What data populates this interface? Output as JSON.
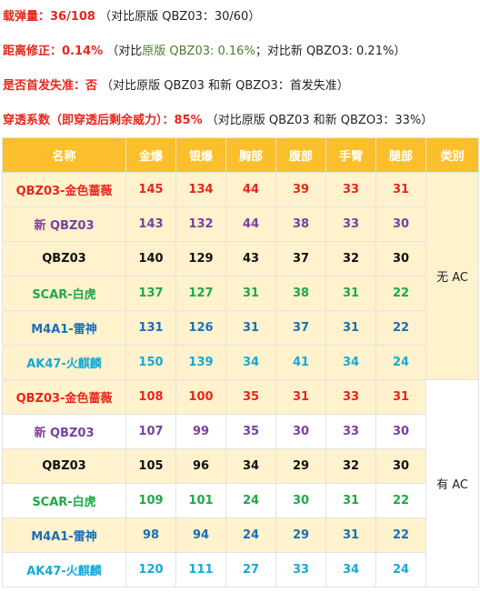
{
  "notes": {
    "line1_label": "载弹量：36/108",
    "line1_rest": "（对比原版 QBZ03：30/60）",
    "line2_label": "距离修正：0.14%",
    "line2_pre": "（对比",
    "line2_green": "原版 QBZ03: 0.16%",
    "line2_post": "；对比新 QBZO3: 0.21%）",
    "line3_label": "是否首发失准：否",
    "line3_rest": "（对比原版 QBZ03 和新 QBZO3：首发失准）",
    "line4_label": "穿透系数（即穿透后剩余威力）：85%",
    "line4_rest": "（对比原版 QBZ03 和新 QBZO3：33%）"
  },
  "table": {
    "headers": [
      "名称",
      "金爆",
      "银爆",
      "胸部",
      "腹部",
      "手臂",
      "腿部",
      "类别"
    ],
    "groups": [
      {
        "label": "无 AC",
        "rows": [
          {
            "name": "QBZ03-金色蔷薇",
            "values": [
              "145",
              "134",
              "44",
              "39",
              "33",
              "31"
            ],
            "color": "#e8261b"
          },
          {
            "name": "新 QBZ03",
            "values": [
              "143",
              "132",
              "44",
              "38",
              "33",
              "30"
            ],
            "color": "#7b3fa0"
          },
          {
            "name": "QBZ03",
            "values": [
              "140",
              "129",
              "43",
              "37",
              "32",
              "30"
            ],
            "color": "#111111"
          },
          {
            "name": "SCAR-白虎",
            "values": [
              "137",
              "127",
              "31",
              "38",
              "31",
              "22"
            ],
            "color": "#1ea84a"
          },
          {
            "name": "M4A1-雷神",
            "values": [
              "131",
              "126",
              "31",
              "37",
              "31",
              "22"
            ],
            "color": "#1b6fb5"
          },
          {
            "name": "AK47-火麒麟",
            "values": [
              "150",
              "139",
              "34",
              "41",
              "34",
              "24"
            ],
            "color": "#15a9d6"
          }
        ]
      },
      {
        "label": "有 AC",
        "rows": [
          {
            "name": "QBZ03-金色蔷薇",
            "values": [
              "108",
              "100",
              "35",
              "31",
              "33",
              "31"
            ],
            "color": "#e8261b"
          },
          {
            "name": "新 QBZ03",
            "values": [
              "107",
              "99",
              "35",
              "30",
              "33",
              "30"
            ],
            "color": "#7b3fa0"
          },
          {
            "name": "QBZ03",
            "values": [
              "105",
              "96",
              "34",
              "29",
              "32",
              "30"
            ],
            "color": "#111111"
          },
          {
            "name": "SCAR-白虎",
            "values": [
              "109",
              "101",
              "24",
              "30",
              "31",
              "22"
            ],
            "color": "#1ea84a"
          },
          {
            "name": "M4A1-雷神",
            "values": [
              "98",
              "94",
              "24",
              "29",
              "31",
              "22"
            ],
            "color": "#1b6fb5"
          },
          {
            "name": "AK47-火麒麟",
            "values": [
              "120",
              "111",
              "27",
              "33",
              "34",
              "24"
            ],
            "color": "#15a9d6"
          }
        ]
      }
    ]
  }
}
